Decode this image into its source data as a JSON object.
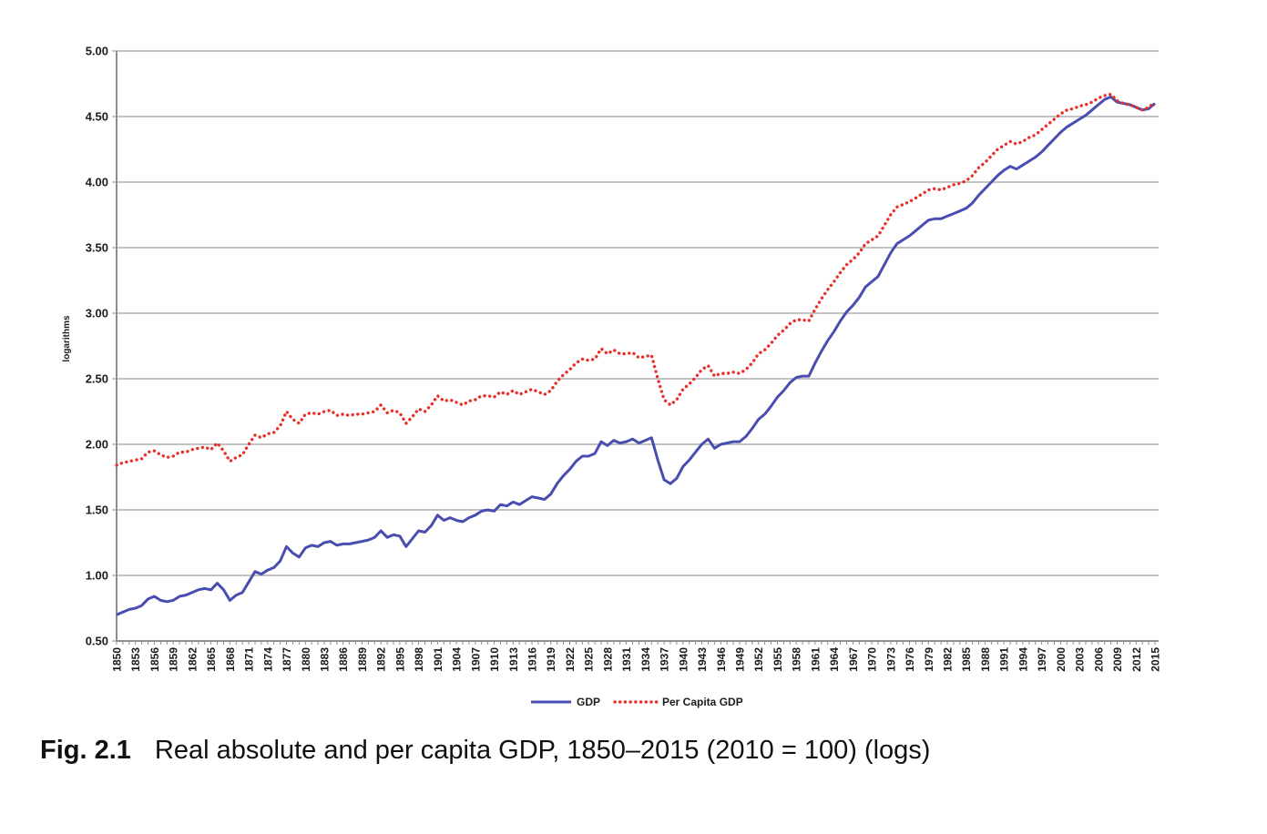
{
  "chart_data": {
    "type": "line",
    "title": "",
    "xlabel": "",
    "ylabel": "logarithms",
    "x_range": [
      1850,
      2015
    ],
    "ylim": [
      0.5,
      5.0
    ],
    "grid": "horizontal",
    "legend_position": "bottom",
    "background_color": "#ffffff",
    "gridline_color": "#c3c3c3",
    "axis_color": "#8e8e8e",
    "label_color": "#1c1c1c",
    "y_ticks": [
      "5.00",
      "4.50",
      "4.00",
      "3.50",
      "3.00",
      "2.50",
      "2.00",
      "1.50",
      "1.00",
      "0.50"
    ],
    "y_tick_values": [
      5.0,
      4.5,
      4.0,
      3.5,
      3.0,
      2.5,
      2.0,
      1.5,
      1.0,
      0.5
    ],
    "x_tick_step": 3,
    "x_tick_labels": [
      "1850",
      "1853",
      "1856",
      "1859",
      "1862",
      "1865",
      "1868",
      "1871",
      "1874",
      "1877",
      "1880",
      "1883",
      "1886",
      "1889",
      "1892",
      "1895",
      "1898",
      "1901",
      "1904",
      "1907",
      "1910",
      "1913",
      "1916",
      "1919",
      "1922",
      "1925",
      "1928",
      "1931",
      "1934",
      "1937",
      "1940",
      "1943",
      "1946",
      "1949",
      "1952",
      "1955",
      "1958",
      "1961",
      "1964",
      "1967",
      "1970",
      "1973",
      "1976",
      "1979",
      "1982",
      "1985",
      "1988",
      "1991",
      "1994",
      "1997",
      "2000",
      "2003",
      "2006",
      "2009",
      "2012",
      "2015"
    ],
    "series": [
      {
        "name": "GDP",
        "style": "solid",
        "color": "#4a4db0",
        "values": [
          0.7,
          0.72,
          0.74,
          0.75,
          0.77,
          0.82,
          0.84,
          0.81,
          0.8,
          0.81,
          0.84,
          0.85,
          0.87,
          0.89,
          0.9,
          0.89,
          0.94,
          0.89,
          0.81,
          0.85,
          0.87,
          0.95,
          1.03,
          1.01,
          1.04,
          1.06,
          1.11,
          1.22,
          1.17,
          1.14,
          1.21,
          1.23,
          1.22,
          1.25,
          1.26,
          1.23,
          1.24,
          1.24,
          1.25,
          1.26,
          1.27,
          1.29,
          1.34,
          1.29,
          1.31,
          1.3,
          1.22,
          1.28,
          1.34,
          1.33,
          1.38,
          1.46,
          1.42,
          1.44,
          1.42,
          1.41,
          1.44,
          1.46,
          1.49,
          1.5,
          1.49,
          1.54,
          1.53,
          1.56,
          1.54,
          1.57,
          1.6,
          1.59,
          1.58,
          1.62,
          1.7,
          1.76,
          1.81,
          1.87,
          1.91,
          1.91,
          1.93,
          2.02,
          1.99,
          2.03,
          2.01,
          2.02,
          2.04,
          2.01,
          2.03,
          2.05,
          1.88,
          1.73,
          1.7,
          1.74,
          1.83,
          1.88,
          1.94,
          2.0,
          2.04,
          1.97,
          2.0,
          2.01,
          2.02,
          2.02,
          2.06,
          2.12,
          2.19,
          2.23,
          2.29,
          2.36,
          2.41,
          2.47,
          2.51,
          2.52,
          2.52,
          2.62,
          2.71,
          2.79,
          2.86,
          2.94,
          3.01,
          3.06,
          3.12,
          3.2,
          3.24,
          3.28,
          3.37,
          3.46,
          3.53,
          3.56,
          3.59,
          3.63,
          3.67,
          3.71,
          3.72,
          3.72,
          3.74,
          3.76,
          3.78,
          3.8,
          3.84,
          3.9,
          3.95,
          4.0,
          4.05,
          4.09,
          4.12,
          4.1,
          4.13,
          4.16,
          4.19,
          4.23,
          4.28,
          4.33,
          4.38,
          4.42,
          4.45,
          4.48,
          4.51,
          4.55,
          4.59,
          4.63,
          4.65,
          4.61,
          4.6,
          4.59,
          4.57,
          4.55,
          4.56,
          4.6
        ]
      },
      {
        "name": "Per Capita GDP",
        "style": "dotted",
        "color": "#e8302a",
        "values": [
          1.84,
          1.86,
          1.87,
          1.88,
          1.89,
          1.94,
          1.95,
          1.92,
          1.9,
          1.91,
          1.94,
          1.94,
          1.96,
          1.97,
          1.98,
          1.96,
          2.01,
          1.95,
          1.87,
          1.9,
          1.92,
          2.0,
          2.07,
          2.05,
          2.08,
          2.09,
          2.14,
          2.25,
          2.19,
          2.16,
          2.23,
          2.24,
          2.23,
          2.25,
          2.26,
          2.22,
          2.23,
          2.22,
          2.23,
          2.23,
          2.24,
          2.25,
          2.3,
          2.24,
          2.26,
          2.24,
          2.16,
          2.21,
          2.27,
          2.25,
          2.3,
          2.37,
          2.33,
          2.34,
          2.32,
          2.3,
          2.33,
          2.34,
          2.37,
          2.37,
          2.36,
          2.4,
          2.38,
          2.41,
          2.38,
          2.4,
          2.42,
          2.4,
          2.38,
          2.41,
          2.48,
          2.53,
          2.57,
          2.62,
          2.65,
          2.64,
          2.65,
          2.73,
          2.69,
          2.72,
          2.69,
          2.69,
          2.7,
          2.66,
          2.67,
          2.68,
          2.5,
          2.34,
          2.3,
          2.34,
          2.42,
          2.46,
          2.51,
          2.57,
          2.6,
          2.52,
          2.54,
          2.54,
          2.55,
          2.54,
          2.57,
          2.62,
          2.69,
          2.72,
          2.77,
          2.83,
          2.87,
          2.92,
          2.95,
          2.95,
          2.94,
          3.03,
          3.11,
          3.18,
          3.24,
          3.31,
          3.37,
          3.41,
          3.46,
          3.53,
          3.56,
          3.59,
          3.67,
          3.75,
          3.81,
          3.83,
          3.85,
          3.88,
          3.91,
          3.94,
          3.95,
          3.94,
          3.96,
          3.98,
          3.99,
          4.01,
          4.05,
          4.11,
          4.15,
          4.2,
          4.25,
          4.28,
          4.31,
          4.29,
          4.31,
          4.34,
          4.36,
          4.4,
          4.44,
          4.48,
          4.52,
          4.55,
          4.56,
          4.58,
          4.59,
          4.61,
          4.64,
          4.66,
          4.67,
          4.62,
          4.6,
          4.59,
          4.57,
          4.55,
          4.57,
          4.61
        ]
      }
    ]
  },
  "legend": {
    "gdp_label": "GDP",
    "per_capita_label": "Per Capita GDP"
  },
  "caption": {
    "fig_label": "Fig. 2.1",
    "text": "Real absolute and per capita GDP, 1850–2015 (2010 = 100) (logs)"
  }
}
